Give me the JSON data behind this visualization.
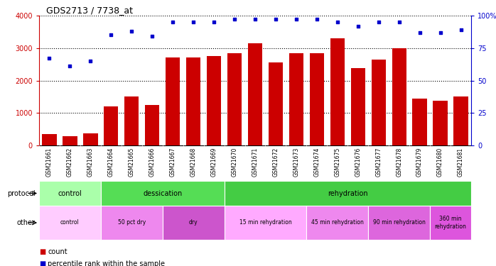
{
  "title": "GDS2713 / 7738_at",
  "samples": [
    "GSM21661",
    "GSM21662",
    "GSM21663",
    "GSM21664",
    "GSM21665",
    "GSM21666",
    "GSM21667",
    "GSM21668",
    "GSM21669",
    "GSM21670",
    "GSM21671",
    "GSM21672",
    "GSM21673",
    "GSM21674",
    "GSM21675",
    "GSM21676",
    "GSM21677",
    "GSM21678",
    "GSM21679",
    "GSM21680",
    "GSM21681"
  ],
  "counts": [
    350,
    280,
    370,
    1200,
    1500,
    1250,
    2700,
    2700,
    2750,
    2850,
    3150,
    2550,
    2850,
    2850,
    3300,
    2380,
    2650,
    3000,
    1450,
    1380,
    1500
  ],
  "percentiles": [
    67,
    61,
    65,
    85,
    88,
    84,
    95,
    95,
    95,
    97,
    97,
    97,
    97,
    97,
    95,
    92,
    95,
    95,
    87,
    87,
    89
  ],
  "bar_color": "#cc0000",
  "dot_color": "#0000cc",
  "ylim_left": [
    0,
    4000
  ],
  "ylim_right": [
    0,
    100
  ],
  "yticks_left": [
    0,
    1000,
    2000,
    3000,
    4000
  ],
  "yticks_right": [
    0,
    25,
    50,
    75,
    100
  ],
  "protocol_groups": [
    {
      "label": "control",
      "start": 0,
      "end": 3,
      "color": "#aaffaa"
    },
    {
      "label": "dessication",
      "start": 3,
      "end": 9,
      "color": "#55dd55"
    },
    {
      "label": "rehydration",
      "start": 9,
      "end": 21,
      "color": "#44cc44"
    }
  ],
  "other_groups": [
    {
      "label": "control",
      "start": 0,
      "end": 3,
      "color": "#ffccff"
    },
    {
      "label": "50 pct dry",
      "start": 3,
      "end": 6,
      "color": "#ee88ee"
    },
    {
      "label": "dry",
      "start": 6,
      "end": 9,
      "color": "#cc55cc"
    },
    {
      "label": "15 min rehydration",
      "start": 9,
      "end": 13,
      "color": "#ffaaff"
    },
    {
      "label": "45 min rehydration",
      "start": 13,
      "end": 16,
      "color": "#ee88ee"
    },
    {
      "label": "90 min rehydration",
      "start": 16,
      "end": 19,
      "color": "#dd66dd"
    },
    {
      "label": "360 min\nrehydration",
      "start": 19,
      "end": 21,
      "color": "#dd55dd"
    }
  ],
  "bg_color": "#ffffff",
  "xtick_bg_color": "#dddddd",
  "legend_count_label": "count",
  "legend_pct_label": "percentile rank within the sample",
  "protocol_label": "protocol",
  "other_label": "other",
  "title_fontsize": 9,
  "tick_fontsize": 7,
  "sample_fontsize": 5.5,
  "annot_fontsize": 7,
  "legend_fontsize": 7
}
